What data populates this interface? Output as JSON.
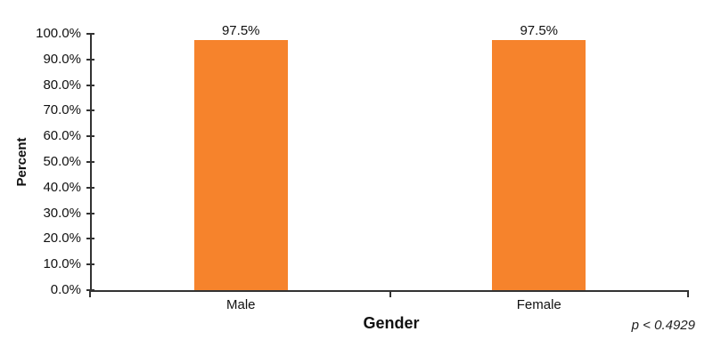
{
  "chart_data": {
    "type": "bar",
    "title": "",
    "categories": [
      "Male",
      "Female"
    ],
    "values": [
      97.5,
      97.5
    ],
    "value_labels": [
      "97.5%",
      "97.5%"
    ],
    "xlabel": "Gender",
    "ylabel": "Percent",
    "ylim": [
      0,
      100
    ],
    "ytick_labels": [
      "0.0%",
      "10.0%",
      "20.0%",
      "30.0%",
      "40.0%",
      "50.0%",
      "60.0%",
      "70.0%",
      "80.0%",
      "90.0%",
      "100.0%"
    ],
    "annotation": "p < 0.4929",
    "bar_color": "#F6832C",
    "axis_color": "#333333",
    "text_color": "#111111",
    "legend": "none",
    "grid": false
  }
}
